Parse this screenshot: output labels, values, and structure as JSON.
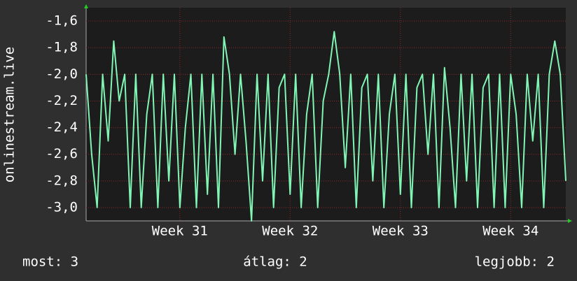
{
  "chart_data": {
    "type": "line",
    "y_label": "onlinestream.live",
    "annotations": [
      "most: 3",
      "átlag: 2",
      "legjobb: 2"
    ],
    "color": "#80f5b4",
    "grid": true,
    "xlim": [
      30.15,
      34.5
    ],
    "xticks": [
      {
        "value": 31,
        "label": "Week 31"
      },
      {
        "value": 32,
        "label": "Week 32"
      },
      {
        "value": 33,
        "label": "Week 33"
      },
      {
        "value": 34,
        "label": "Week 34"
      }
    ],
    "ylim": [
      -3.1,
      -1.5
    ],
    "yticks": [
      {
        "value": -1.6,
        "label": "-1,6"
      },
      {
        "value": -1.8,
        "label": "-1,8"
      },
      {
        "value": -2.0,
        "label": "-2,0"
      },
      {
        "value": -2.2,
        "label": "-2,2"
      },
      {
        "value": -2.4,
        "label": "-2,4"
      },
      {
        "value": -2.6,
        "label": "-2,6"
      },
      {
        "value": -2.8,
        "label": "-2,8"
      },
      {
        "value": -3.0,
        "label": "-3,0"
      }
    ],
    "x": [
      30.15,
      30.2,
      30.25,
      30.3,
      30.35,
      30.4,
      30.45,
      30.5,
      30.55,
      30.6,
      30.65,
      30.7,
      30.75,
      30.8,
      30.85,
      30.9,
      30.95,
      31.0,
      31.05,
      31.1,
      31.15,
      31.2,
      31.25,
      31.3,
      31.35,
      31.4,
      31.45,
      31.5,
      31.55,
      31.6,
      31.65,
      31.7,
      31.75,
      31.8,
      31.85,
      31.9,
      31.95,
      32.0,
      32.05,
      32.1,
      32.15,
      32.2,
      32.25,
      32.3,
      32.35,
      32.4,
      32.45,
      32.5,
      32.55,
      32.6,
      32.65,
      32.7,
      32.75,
      32.8,
      32.85,
      32.9,
      32.95,
      33.0,
      33.05,
      33.1,
      33.15,
      33.2,
      33.25,
      33.3,
      33.35,
      33.4,
      33.45,
      33.5,
      33.55,
      33.6,
      33.65,
      33.7,
      33.75,
      33.8,
      33.85,
      33.9,
      33.95,
      34.0,
      34.05,
      34.1,
      34.15,
      34.2,
      34.25,
      34.3,
      34.35,
      34.4,
      34.45,
      34.5
    ],
    "values": [
      -2.0,
      -2.6,
      -3.0,
      -2.0,
      -2.5,
      -1.75,
      -2.2,
      -2.0,
      -3.0,
      -2.0,
      -3.0,
      -2.3,
      -2.0,
      -3.0,
      -2.0,
      -2.8,
      -2.0,
      -3.0,
      -2.4,
      -2.0,
      -3.0,
      -2.0,
      -2.9,
      -2.0,
      -3.0,
      -1.72,
      -2.0,
      -2.6,
      -2.0,
      -2.5,
      -3.1,
      -2.0,
      -2.8,
      -2.0,
      -3.0,
      -2.1,
      -2.0,
      -2.9,
      -2.0,
      -3.0,
      -2.3,
      -2.0,
      -3.0,
      -2.2,
      -2.0,
      -1.68,
      -2.0,
      -2.7,
      -2.0,
      -3.0,
      -2.1,
      -2.0,
      -2.8,
      -2.0,
      -3.0,
      -2.3,
      -2.0,
      -2.9,
      -2.0,
      -3.0,
      -2.1,
      -2.0,
      -2.6,
      -2.0,
      -3.0,
      -1.95,
      -2.4,
      -3.0,
      -2.0,
      -2.8,
      -2.0,
      -3.0,
      -2.1,
      -2.0,
      -3.0,
      -2.0,
      -3.0,
      -2.0,
      -2.3,
      -3.0,
      -2.0,
      -2.5,
      -2.0,
      -3.0,
      -2.0,
      -1.75,
      -2.0,
      -2.8
    ]
  }
}
